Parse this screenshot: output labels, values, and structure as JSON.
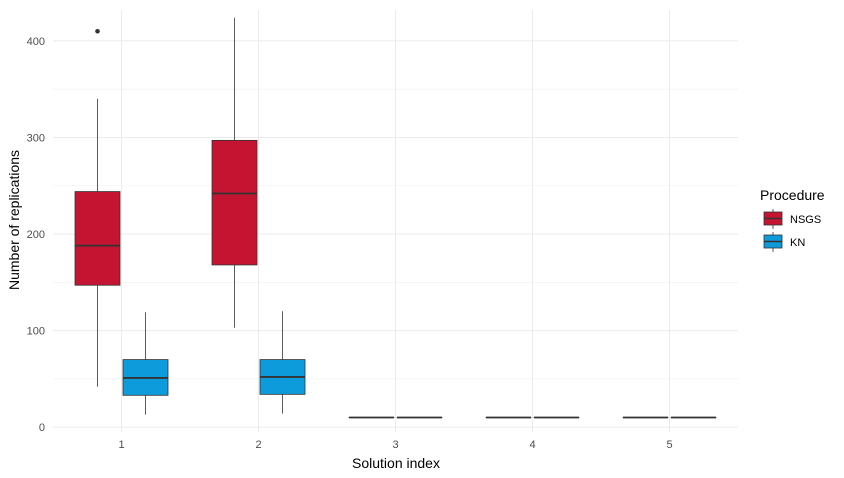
{
  "chart_data": {
    "type": "boxplot",
    "xlabel": "Solution index",
    "ylabel": "Number of replications",
    "categories": [
      "1",
      "2",
      "3",
      "4",
      "5"
    ],
    "ylim": [
      -5,
      432
    ],
    "y_ticks": [
      0,
      100,
      200,
      300,
      400
    ],
    "grid": true,
    "legend": {
      "title": "Procedure",
      "placement": "right"
    },
    "series": [
      {
        "name": "NSGS",
        "color": "#C41432",
        "boxes": [
          {
            "min": 42,
            "q1": 147,
            "median": 188,
            "q3": 244,
            "max": 340,
            "outliers": [
              410
            ]
          },
          {
            "min": 103,
            "q1": 168,
            "median": 242,
            "q3": 297,
            "max": 424,
            "outliers": []
          },
          {
            "min": 10,
            "q1": 10,
            "median": 10,
            "q3": 10,
            "max": 10,
            "outliers": []
          },
          {
            "min": 10,
            "q1": 10,
            "median": 10,
            "q3": 10,
            "max": 10,
            "outliers": []
          },
          {
            "min": 10,
            "q1": 10,
            "median": 10,
            "q3": 10,
            "max": 10,
            "outliers": []
          }
        ]
      },
      {
        "name": "KN",
        "color": "#0E9BDB",
        "boxes": [
          {
            "min": 13,
            "q1": 33,
            "median": 51,
            "q3": 70,
            "max": 119,
            "outliers": []
          },
          {
            "min": 14,
            "q1": 34,
            "median": 52,
            "q3": 70,
            "max": 120,
            "outliers": []
          },
          {
            "min": 10,
            "q1": 10,
            "median": 10,
            "q3": 10,
            "max": 10,
            "outliers": []
          },
          {
            "min": 10,
            "q1": 10,
            "median": 10,
            "q3": 10,
            "max": 10,
            "outliers": []
          },
          {
            "min": 10,
            "q1": 10,
            "median": 10,
            "q3": 10,
            "max": 10,
            "outliers": []
          }
        ]
      }
    ]
  }
}
